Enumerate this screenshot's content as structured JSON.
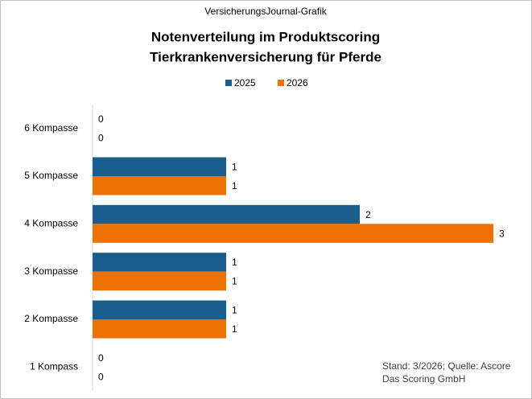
{
  "chart_data": {
    "type": "hbar",
    "header": "VersicherungsJournal-Grafik",
    "title": [
      "Notenverteilung im Produktscoring",
      "Tierkrankenversicherung  für Pferde"
    ],
    "categories": [
      "6 Kompasse",
      "5 Kompasse",
      "4 Kompasse",
      "3 Kompasse",
      "2 Kompasse",
      "1 Kompass"
    ],
    "series": [
      {
        "name": "2025",
        "color": "#1a5e8e",
        "values": [
          0,
          1,
          2,
          1,
          1,
          0
        ]
      },
      {
        "name": "2026",
        "color": "#ee7203",
        "values": [
          0,
          1,
          3,
          1,
          1,
          0
        ]
      }
    ],
    "xlim": [
      0,
      3
    ],
    "legend": "top",
    "source": [
      "Stand: 3/2026; Quelle: Ascore",
      "Das Scoring GmbH"
    ]
  }
}
